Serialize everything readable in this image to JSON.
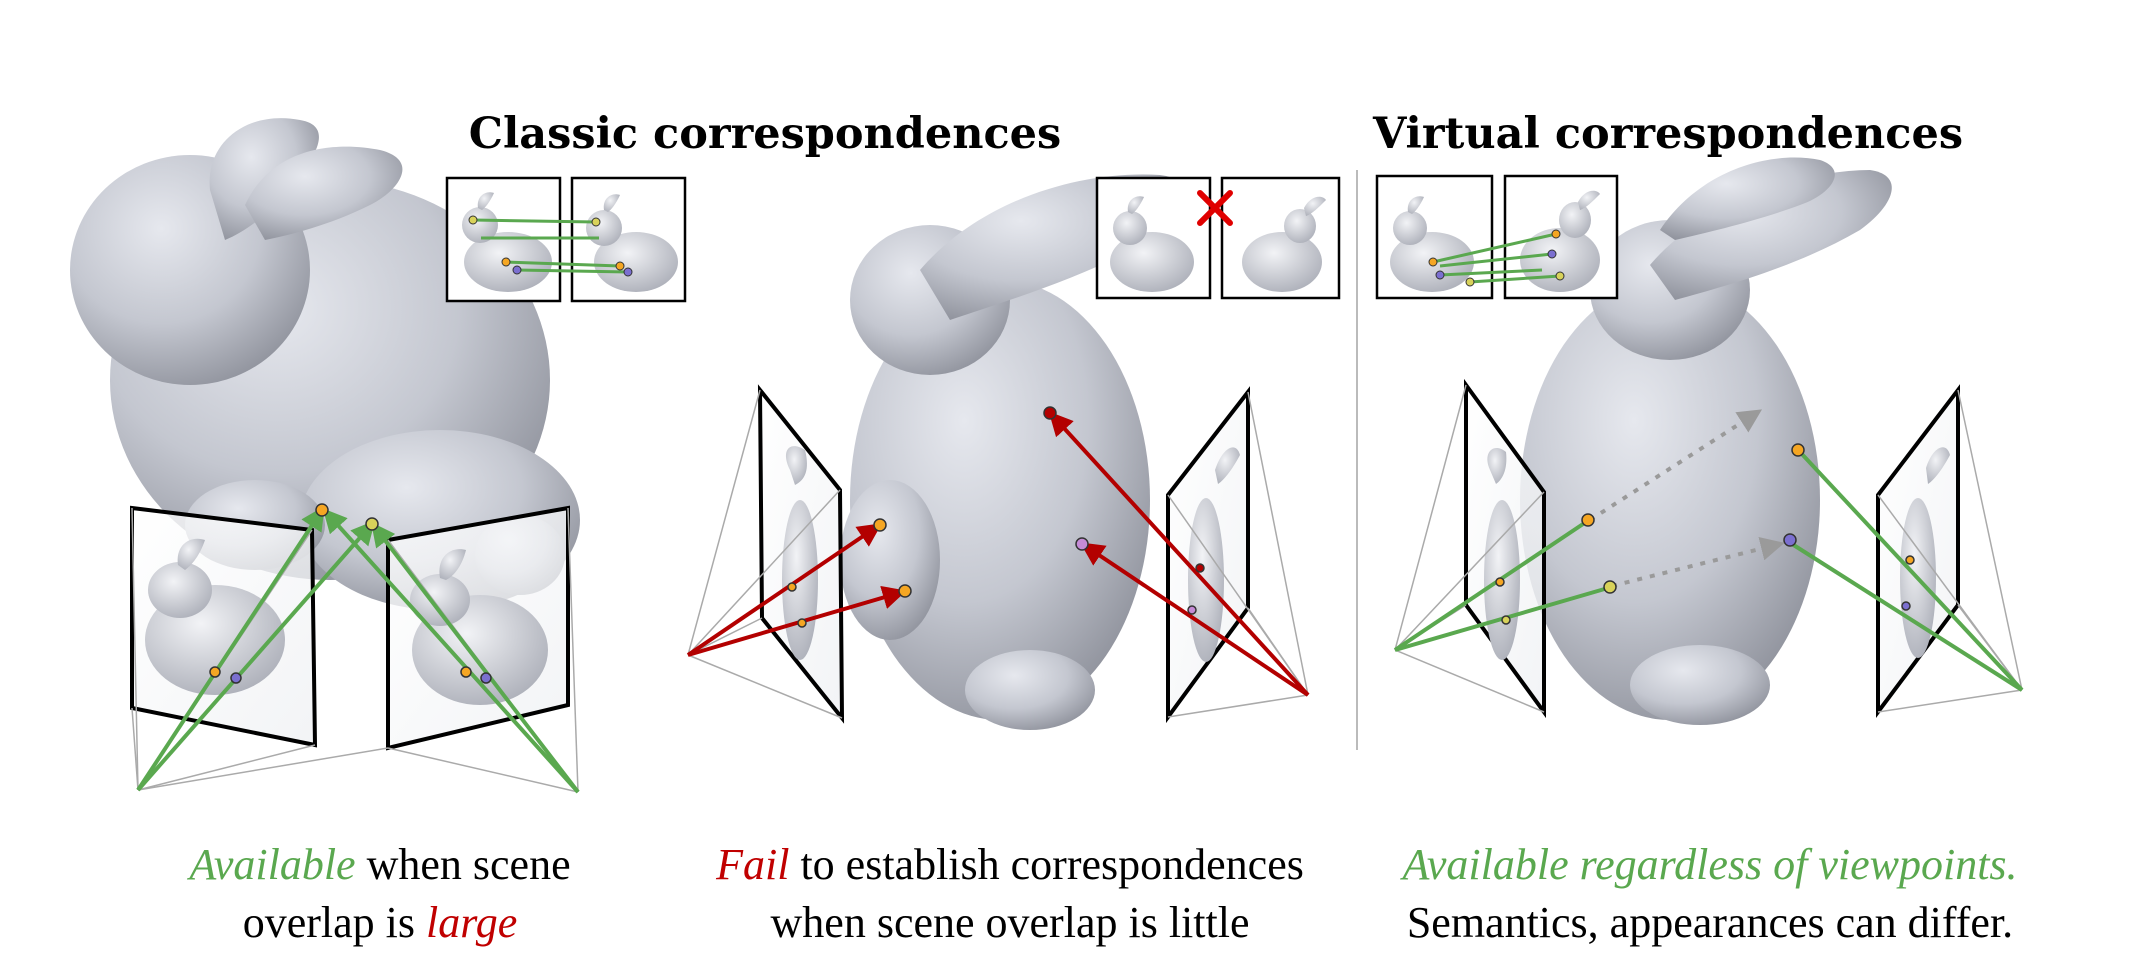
{
  "titles": {
    "classic": "Classic correspondences",
    "virtual": "Virtual correspondences"
  },
  "captions": {
    "left": {
      "highlight": "Available",
      "text_1": " when scene",
      "text_2": "overlap is ",
      "emphasis": "large"
    },
    "middle": {
      "highlight": "Fail",
      "text_1": " to establish correspondences",
      "text_2": "when scene overlap is little"
    },
    "right": {
      "highlight": "Available regardless of viewpoints.",
      "text_2": "Semantics, appearances can differ."
    }
  },
  "colors": {
    "success_green": "#5aa84f",
    "fail_red": "#c00000",
    "virtual_dotted": "#9a9a9a",
    "mesh_gray": "#c2c5cf",
    "point_orange": "#f5a623",
    "point_purple": "#7b6fd0"
  },
  "icons": [
    "bunny-mesh-icon",
    "camera-frustum-icon",
    "fail-cross-icon",
    "image-pair-inset-icon"
  ]
}
